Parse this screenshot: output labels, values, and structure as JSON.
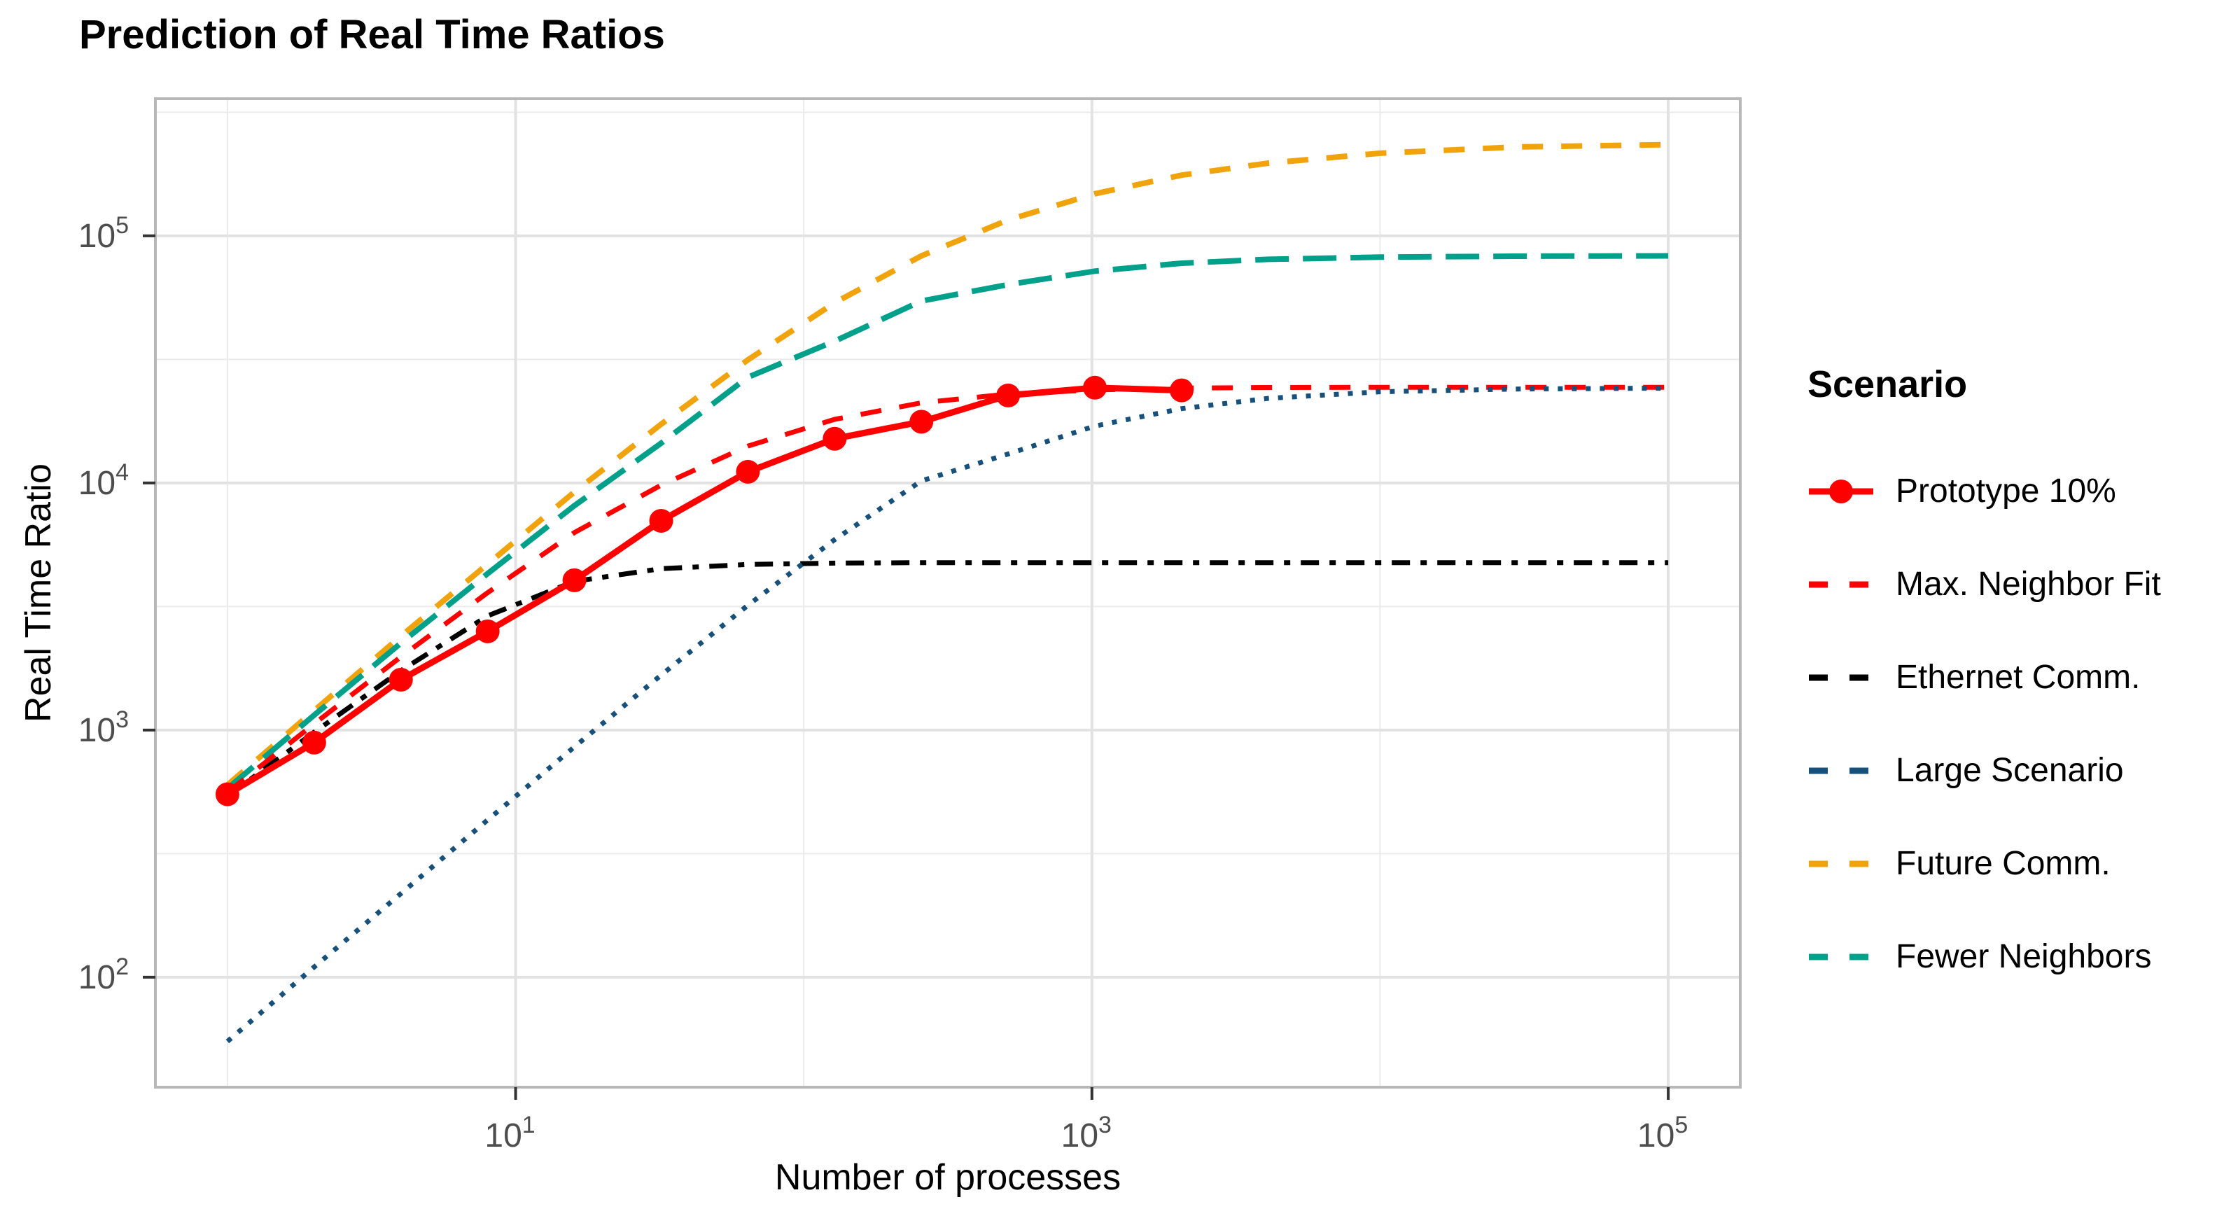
{
  "title": "Prediction of Real Time Ratios",
  "chart_data": {
    "type": "line",
    "title": "Prediction of Real Time Ratios",
    "xlabel": "Number of processes",
    "ylabel": "Real Time Ratio",
    "legend_title": "Scenario",
    "axes": {
      "x_scale": "log10",
      "y_scale": "log10",
      "xlim_log": [
        -0.25,
        5.25
      ],
      "ylim_log": [
        1.555,
        5.555
      ],
      "x_major_ticks_exp": [
        1,
        3,
        5
      ],
      "y_major_ticks_exp": [
        5,
        4,
        3,
        2
      ],
      "x_minor_exp": [
        0,
        2,
        4
      ],
      "y_minor_exp": [
        5.5,
        4.5,
        3.5,
        2.5
      ],
      "tick_base": "10",
      "grid": true,
      "legend_position": "right"
    },
    "colors": {
      "red": "#FF0000",
      "black": "#000000",
      "navy": "#17507A",
      "orange": "#F0A30A",
      "teal": "#00A08A",
      "grid_major": "#E2E2E2",
      "grid_minor": "#EBEBEB",
      "panel_border": "#B8B8B8",
      "tick_mark": "#333333",
      "tick_label": "#4D4D4D"
    },
    "series": [
      {
        "name": "Prototype 10%",
        "color": "#FF0000",
        "linetype": "solid",
        "marker": "circle",
        "marker_radius": 17,
        "stroke_width": 9,
        "dash": [],
        "legend_dash": [],
        "points": [
          [
            1,
            550
          ],
          [
            2,
            890
          ],
          [
            4,
            1600
          ],
          [
            8,
            2510
          ],
          [
            16,
            4040
          ],
          [
            32,
            7030
          ],
          [
            64,
            11100
          ],
          [
            128,
            15100
          ],
          [
            256,
            17700
          ],
          [
            512,
            22600
          ],
          [
            1024,
            24300
          ],
          [
            2048,
            23700
          ]
        ]
      },
      {
        "name": "Max. Neighbor Fit",
        "color": "#FF0000",
        "linetype": "dashed",
        "marker": null,
        "stroke_width": 7,
        "dash": [
          30,
          26
        ],
        "legend_dash": [
          27,
          31
        ],
        "points": [
          [
            1,
            560
          ],
          [
            2,
            1060
          ],
          [
            4,
            1980
          ],
          [
            8,
            3600
          ],
          [
            16,
            6300
          ],
          [
            32,
            9800
          ],
          [
            64,
            14100
          ],
          [
            128,
            18100
          ],
          [
            256,
            21100
          ],
          [
            512,
            22900
          ],
          [
            1024,
            23800
          ],
          [
            2048,
            24200
          ],
          [
            4096,
            24350
          ],
          [
            10000,
            24400
          ],
          [
            100000,
            24400
          ]
        ]
      },
      {
        "name": "Ethernet Comm.",
        "color": "#000000",
        "linetype": "dotdash",
        "marker": null,
        "stroke_width": 7,
        "dash": [
          26,
          15,
          9,
          15
        ],
        "legend_dash": [
          27,
          31
        ],
        "points": [
          [
            1,
            540
          ],
          [
            2,
            980
          ],
          [
            4,
            1740
          ],
          [
            8,
            2900
          ],
          [
            16,
            4000
          ],
          [
            32,
            4500
          ],
          [
            64,
            4680
          ],
          [
            128,
            4740
          ],
          [
            256,
            4760
          ],
          [
            1024,
            4760
          ],
          [
            100000,
            4760
          ]
        ]
      },
      {
        "name": "Large Scenario",
        "color": "#17507A",
        "linetype": "dotted",
        "marker": null,
        "stroke_width": 7,
        "dash": [
          7,
          13
        ],
        "legend_dash": [
          27,
          31
        ],
        "points": [
          [
            1,
            55
          ],
          [
            2,
            110
          ],
          [
            4,
            218
          ],
          [
            8,
            433
          ],
          [
            16,
            856
          ],
          [
            32,
            1670
          ],
          [
            64,
            3200
          ],
          [
            128,
            5900
          ],
          [
            256,
            10200
          ],
          [
            512,
            13100
          ],
          [
            1024,
            17000
          ],
          [
            2048,
            20000
          ],
          [
            4096,
            22000
          ],
          [
            10000,
            23400
          ],
          [
            30000,
            24000
          ],
          [
            100000,
            24200
          ]
        ]
      },
      {
        "name": "Future Comm.",
        "color": "#F0A30A",
        "linetype": "dashed",
        "marker": null,
        "stroke_width": 8,
        "dash": [
          30,
          26
        ],
        "legend_dash": [
          27,
          31
        ],
        "points": [
          [
            1,
            600
          ],
          [
            2,
            1200
          ],
          [
            4,
            2400
          ],
          [
            8,
            4700
          ],
          [
            16,
            9200
          ],
          [
            32,
            17300
          ],
          [
            64,
            31500
          ],
          [
            128,
            53600
          ],
          [
            256,
            83000
          ],
          [
            512,
            116000
          ],
          [
            1024,
            148000
          ],
          [
            2048,
            176000
          ],
          [
            4096,
            197000
          ],
          [
            10000,
            216000
          ],
          [
            30000,
            229000
          ],
          [
            100000,
            234000
          ]
        ]
      },
      {
        "name": "Fewer Neighbors",
        "color": "#00A08A",
        "linetype": "longdash",
        "marker": null,
        "stroke_width": 8,
        "dash": [
          48,
          20
        ],
        "legend_dash": [
          27,
          31
        ],
        "points": [
          [
            1,
            580
          ],
          [
            2,
            1150
          ],
          [
            4,
            2250
          ],
          [
            8,
            4300
          ],
          [
            16,
            8100
          ],
          [
            32,
            14500
          ],
          [
            64,
            26800
          ],
          [
            128,
            37500
          ],
          [
            256,
            54500
          ],
          [
            512,
            63500
          ],
          [
            1024,
            72000
          ],
          [
            2048,
            77500
          ],
          [
            4096,
            80400
          ],
          [
            10000,
            82000
          ],
          [
            30000,
            82700
          ],
          [
            100000,
            83000
          ]
        ]
      }
    ]
  }
}
